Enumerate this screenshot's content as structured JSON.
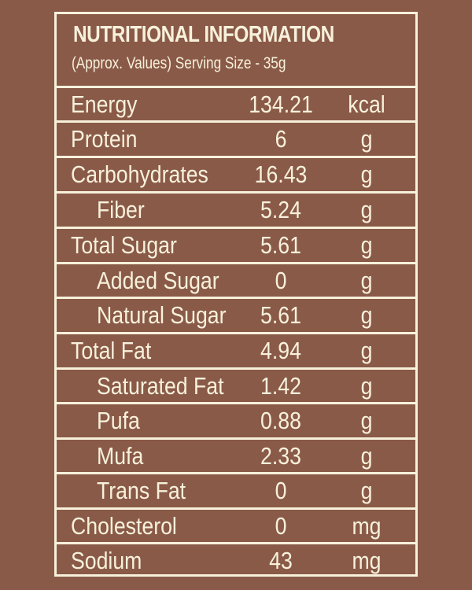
{
  "header": {
    "title": "NUTRITIONAL INFORMATION",
    "subtitle": "(Approx. Values) Serving Size - 35g"
  },
  "rows": [
    {
      "name": "Energy",
      "value": "134.21",
      "unit": "kcal",
      "indent": false
    },
    {
      "name": "Protein",
      "value": "6",
      "unit": "g",
      "indent": false
    },
    {
      "name": "Carbohydrates",
      "value": "16.43",
      "unit": "g",
      "indent": false
    },
    {
      "name": "Fiber",
      "value": "5.24",
      "unit": "g",
      "indent": true
    },
    {
      "name": "Total Sugar",
      "value": "5.61",
      "unit": "g",
      "indent": false
    },
    {
      "name": "Added Sugar",
      "value": "0",
      "unit": "g",
      "indent": true
    },
    {
      "name": "Natural Sugar",
      "value": "5.61",
      "unit": "g",
      "indent": true
    },
    {
      "name": "Total Fat",
      "value": "4.94",
      "unit": "g",
      "indent": false
    },
    {
      "name": "Saturated Fat",
      "value": "1.42",
      "unit": "g",
      "indent": true
    },
    {
      "name": "Pufa",
      "value": "0.88",
      "unit": "g",
      "indent": true
    },
    {
      "name": "Mufa",
      "value": "2.33",
      "unit": "g",
      "indent": true
    },
    {
      "name": "Trans Fat",
      "value": "0",
      "unit": "g",
      "indent": true
    },
    {
      "name": "Cholesterol",
      "value": "0",
      "unit": "mg",
      "indent": false
    },
    {
      "name": "Sodium",
      "value": "43",
      "unit": "mg",
      "indent": false
    }
  ],
  "colors": {
    "background": "#8a5a48",
    "foreground": "#f7f1dc"
  }
}
